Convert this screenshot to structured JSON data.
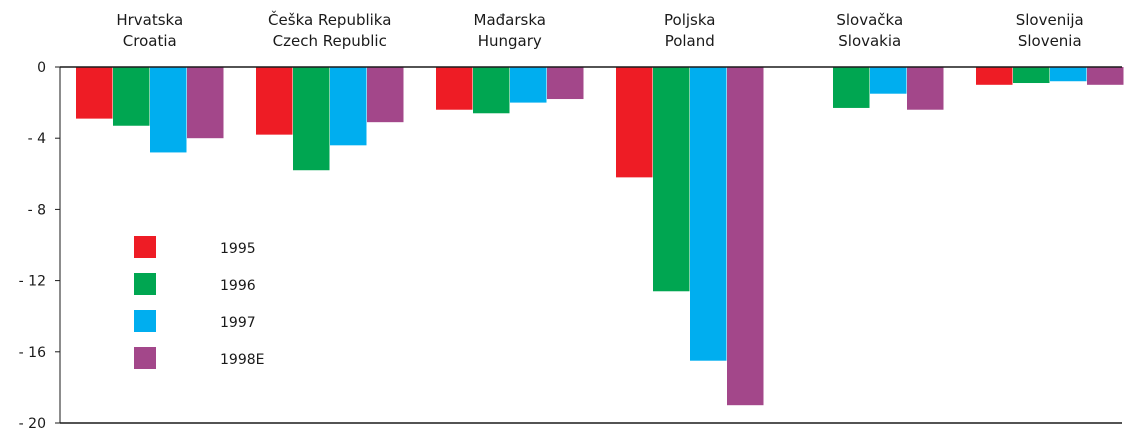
{
  "chart_data": {
    "type": "bar",
    "title": "",
    "xlabel": "",
    "ylabel": "",
    "ylim": [
      -20,
      0
    ],
    "yticks": [
      0,
      -4,
      -8,
      -12,
      -16,
      -20
    ],
    "ytick_labels": [
      "0",
      "- 4",
      "- 8",
      "- 12",
      "- 16",
      "- 20"
    ],
    "categories": [
      {
        "line1": "Hrvatska",
        "line2": "Croatia"
      },
      {
        "line1": "Češka Republika",
        "line2": "Czech Republic"
      },
      {
        "line1": "Mađarska",
        "line2": "Hungary"
      },
      {
        "line1": "Poljska",
        "line2": "Poland"
      },
      {
        "line1": "Slovačka",
        "line2": "Slovakia"
      },
      {
        "line1": "Slovenija",
        "line2": "Slovenia"
      }
    ],
    "series": [
      {
        "name": "1995",
        "color": "#ee1c25",
        "values": [
          -2.9,
          -3.8,
          -2.4,
          -6.2,
          null,
          -1.0
        ]
      },
      {
        "name": "1996",
        "color": "#00a651",
        "values": [
          -3.3,
          -5.8,
          -2.6,
          -12.6,
          -2.3,
          -0.9
        ]
      },
      {
        "name": "1997",
        "color": "#00aeef",
        "values": [
          -4.8,
          -4.4,
          -2.0,
          -16.5,
          -1.5,
          -0.8
        ]
      },
      {
        "name": "1998E",
        "color": "#a3478a",
        "values": [
          -4.0,
          -3.1,
          -1.8,
          -19.0,
          -2.4,
          -1.0
        ]
      }
    ],
    "legend_position": "left, inside plot area",
    "grid": false
  }
}
